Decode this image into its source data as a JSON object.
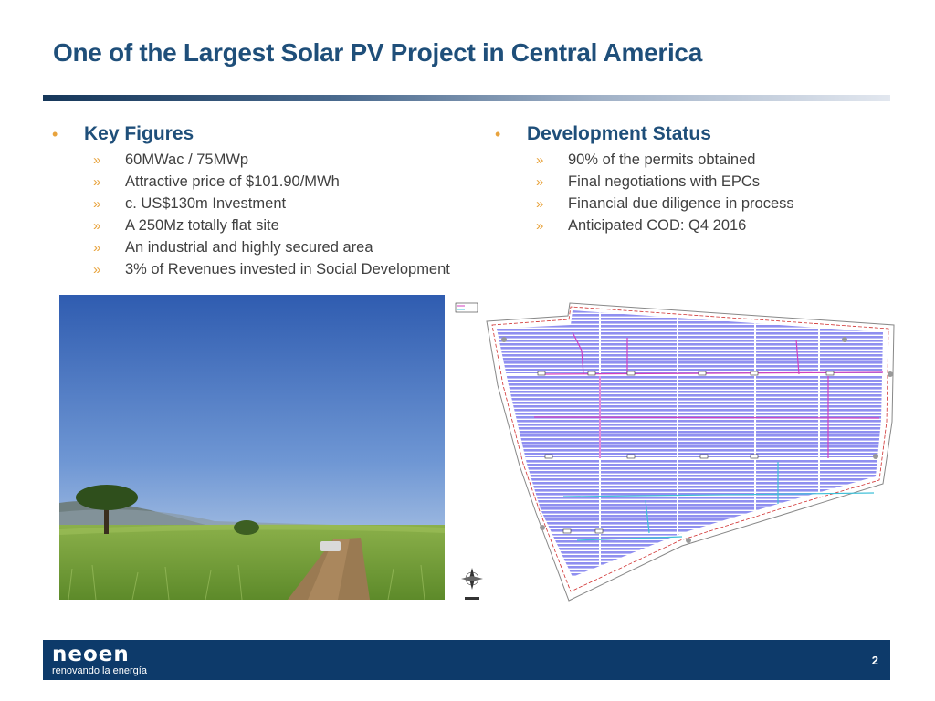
{
  "title": "One of the Largest Solar PV Project in Central America",
  "key_figures": {
    "heading": "Key Figures",
    "items": [
      "60MWac / 75MWp",
      "Attractive price of $101.90/MWh",
      "c. US$130m Investment",
      "A 250Mz totally flat site",
      "An industrial and highly secured area",
      "3% of Revenues invested in Social Development"
    ]
  },
  "development_status": {
    "heading": "Development Status",
    "items": [
      "90% of the permits obtained",
      "Final negotiations with EPCs",
      "Financial due diligence in process",
      "Anticipated COD: Q4 2016"
    ]
  },
  "symbols": {
    "bullet": "•",
    "chevron": "»"
  },
  "footer": {
    "logo_word": "neoen",
    "logo_tagline": "renovando la energía",
    "page_number": "2"
  },
  "colors": {
    "title": "#1f4f7a",
    "accent": "#e8a33d",
    "footer_bg": "#0d3a6a",
    "panel_fill": "#8f8ff0"
  }
}
